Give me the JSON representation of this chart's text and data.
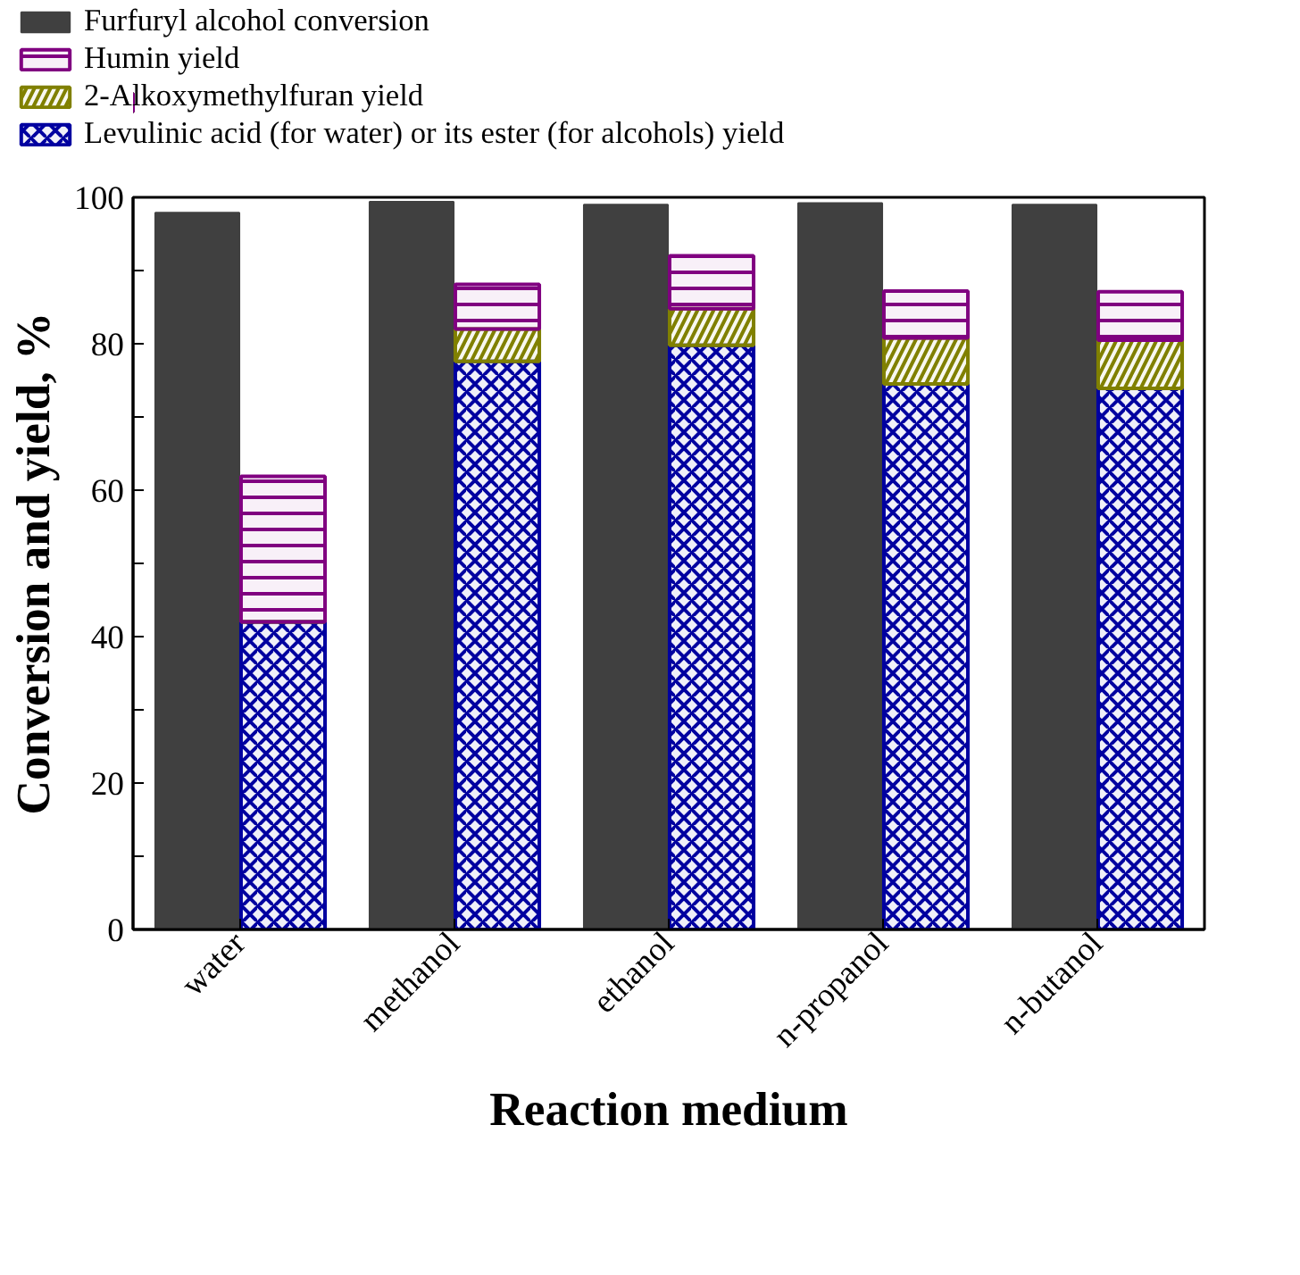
{
  "chart_data": {
    "type": "bar",
    "xlabel": "Reaction medium",
    "ylabel": "Conversion and yield, %",
    "categories": [
      "water",
      "methanol",
      "ethanol",
      "n-propanol",
      "n-butanol"
    ],
    "series": [
      {
        "name": "Furfuryl alcohol conversion",
        "color": "#404040",
        "values": [
          97.9,
          99.4,
          99.0,
          99.2,
          99.0
        ]
      },
      {
        "name": "Levulinic acid (for water) or its ester (for alcohols) yield",
        "color": "#0000a0",
        "values": [
          42.0,
          77.6,
          79.8,
          74.5,
          73.9
        ]
      },
      {
        "name": "2-Alkoxymethylfuran yield",
        "color": "#808000",
        "base": [
          42.0,
          77.6,
          79.8,
          74.5,
          73.9
        ],
        "values": [
          0,
          4.4,
          5.0,
          6.3,
          6.6
        ]
      },
      {
        "name": "Humin yield",
        "color": "#800080",
        "base": [
          42.0,
          82.0,
          84.8,
          80.8,
          80.5
        ],
        "values": [
          19.9,
          6.1,
          7.2,
          6.4,
          6.6
        ]
      }
    ],
    "ylim": [
      0,
      100
    ],
    "yticks": [
      0,
      {
        "value": 10,
        "label": null
      },
      20,
      {
        "value": 30,
        "label": null
      },
      40,
      {
        "value": 50,
        "label": null
      },
      60,
      {
        "value": 70,
        "label": null
      },
      80,
      {
        "value": 90,
        "label": null
      },
      100
    ],
    "legend": "top"
  }
}
